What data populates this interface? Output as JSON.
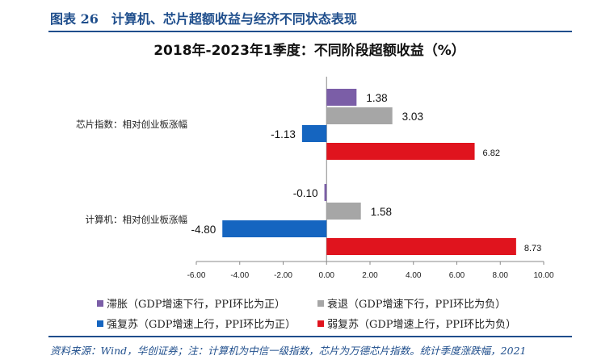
{
  "header": {
    "figure_title": "图表 26　计算机、芯片超额收益与经济不同状态表现"
  },
  "footer": {
    "source": "资料来源：Wind，华创证券；注：计算机为中信一级指数，芯片为万德芯片指数。统计季度涨跌幅，2021"
  },
  "chart_data": {
    "type": "bar",
    "orientation": "horizontal",
    "title": "2018年-2023年1季度：不同阶段超额收益（%）",
    "categories": [
      "芯片指数：相对创业板涨幅",
      "计算机：相对创业板涨幅"
    ],
    "series": [
      {
        "name": "滞胀（GDP增速下行，PPI环比为正）",
        "color": "#7b5ea7",
        "values": [
          1.38,
          -0.1
        ]
      },
      {
        "name": "衰退（GDP增速下行，PPI环比为负）",
        "color": "#a6a6a6",
        "values": [
          3.03,
          1.58
        ]
      },
      {
        "name": "强复苏（GDP增速上行，PPI环比为正）",
        "color": "#1565c0",
        "values": [
          -1.13,
          -4.8
        ]
      },
      {
        "name": "弱复苏（GDP增速上行，PPI环比为负）",
        "color": "#e0141e",
        "values": [
          6.82,
          8.73
        ]
      }
    ],
    "xlim": [
      -6,
      10
    ],
    "xticks": [
      "-6.00",
      "-4.00",
      "-2.00",
      "0.00",
      "2.00",
      "4.00",
      "6.00",
      "8.00",
      "10.00"
    ],
    "legend": "bottom"
  }
}
